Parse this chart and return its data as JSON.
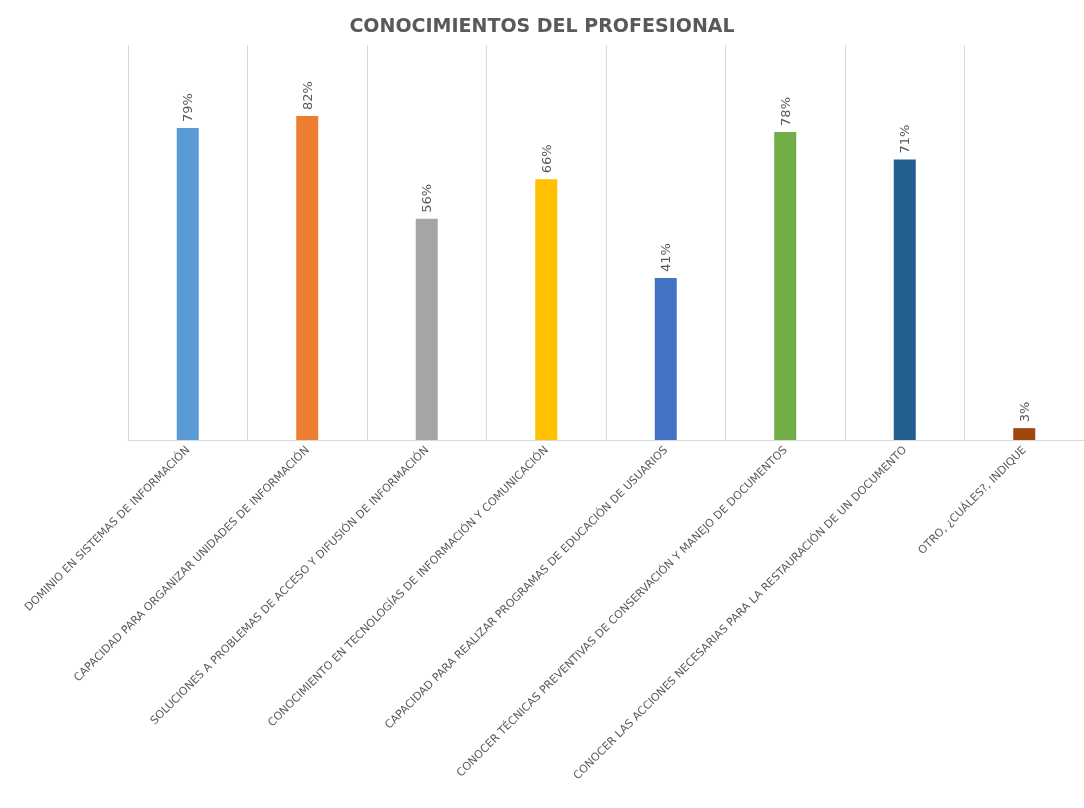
{
  "chart_data": {
    "type": "bar",
    "title": "CONOCIMIENTOS DEL PROFESIONAL",
    "categories": [
      "DOMINIO EN SISTEMAS DE INFORMACIÓN",
      "CAPACIDAD PARA ORGANIZAR UNIDADES DE INFORMACIÓN",
      "SOLUCIONES A PROBLEMAS DE ACCESO Y DIFUSIÓN DE INFORMACIÓN",
      "CONOCIMIENTO EN TECNOLOGÍAS DE INFORMACIÓN Y COMUNICACIÓN",
      "CAPACIDAD PARA REALIZAR PROGRAMAS DE EDUCACIÓN DE USUARIOS",
      "CONOCER TÉCNICAS PREVENTIVAS DE CONSERVACIÓN Y MANEJO DE DOCUMENTOS",
      "CONOCER LAS ACCIONES NECESARIAS PARA LA RESTAURACIÓN DE UN DOCUMENTO",
      "OTRO, ¿CUÁLES?, INDIQUE"
    ],
    "values": [
      79,
      82,
      56,
      66,
      41,
      78,
      71,
      3
    ],
    "value_labels": [
      "79%",
      "82%",
      "56%",
      "66%",
      "41%",
      "78%",
      "71%",
      "3%"
    ],
    "colors": [
      "#5b9bd5",
      "#ed7d31",
      "#a5a5a5",
      "#ffc000",
      "#4472c4",
      "#70ad47",
      "#255e91",
      "#9e480e"
    ],
    "grid": "x",
    "tick_labels": "x"
  }
}
